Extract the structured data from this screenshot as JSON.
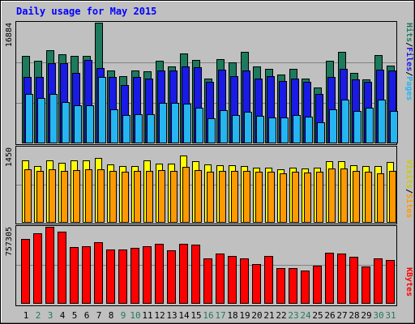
{
  "chart_data": {
    "type": "bar",
    "title": "Daily usage for May 2015",
    "categories": [
      "1",
      "2",
      "3",
      "4",
      "5",
      "6",
      "7",
      "8",
      "9",
      "10",
      "11",
      "12",
      "13",
      "14",
      "15",
      "16",
      "17",
      "18",
      "19",
      "20",
      "21",
      "22",
      "23",
      "24",
      "25",
      "26",
      "27",
      "28",
      "29",
      "30",
      "31"
    ],
    "weekend_days": [
      "2",
      "3",
      "9",
      "10",
      "16",
      "17",
      "23",
      "24",
      "30",
      "31"
    ],
    "panels": [
      {
        "name": "pages-files-hits",
        "ymax_label": "16884",
        "ymax": 16884,
        "legend": [
          "Pages",
          "/",
          "Files",
          "/",
          "Hits"
        ],
        "series": [
          {
            "name": "Hits",
            "color": "#1d7a5c",
            "values": [
              12200,
              11500,
              13000,
              12400,
              12200,
              12200,
              16884,
              10200,
              9400,
              10200,
              10000,
              11500,
              10700,
              12500,
              11600,
              9000,
              11800,
              11300,
              12800,
              10700,
              10400,
              9600,
              10400,
              9000,
              7800,
              11500,
              12800,
              9800,
              8900,
              12300,
              10800
            ]
          },
          {
            "name": "Files",
            "color": "#1a1ae6",
            "values": [
              9200,
              9200,
              11200,
              11200,
              9800,
              11600,
              10500,
              9200,
              8100,
              9200,
              9000,
              10200,
              10100,
              10700,
              10600,
              8500,
              10300,
              9300,
              10100,
              9000,
              9300,
              8700,
              9000,
              8600,
              6800,
              9200,
              10400,
              8900,
              8600,
              10300,
              10200
            ]
          },
          {
            "name": "Pages",
            "color": "#25b5f0",
            "values": [
              6800,
              6300,
              6800,
              5700,
              5300,
              5300,
              9200,
              4700,
              3900,
              4000,
              4000,
              5600,
              5600,
              5500,
              4900,
              3400,
              4600,
              3900,
              4300,
              3800,
              3500,
              3500,
              3900,
              3700,
              2900,
              4700,
              6000,
              4500,
              4900,
              6000,
              4400
            ]
          }
        ]
      },
      {
        "name": "visits-sites",
        "ymax_label": "1450",
        "ymax": 1450,
        "legend": [
          "Sites",
          "/",
          "Visits"
        ],
        "series": [
          {
            "name": "Visits",
            "color": "#ffff00",
            "values": [
              1200,
              1080,
              1200,
              1150,
              1200,
              1190,
              1250,
              1120,
              1090,
              1090,
              1200,
              1140,
              1130,
              1300,
              1180,
              1120,
              1110,
              1100,
              1080,
              1050,
              1060,
              1030,
              1050,
              1040,
              1060,
              1180,
              1180,
              1100,
              1080,
              1090,
              1160
            ]
          },
          {
            "name": "Sites",
            "color": "#ff9900",
            "values": [
              1020,
              1000,
              1020,
              1000,
              1010,
              1020,
              1020,
              990,
              970,
              990,
              990,
              1010,
              1000,
              1070,
              1010,
              970,
              1000,
              990,
              1000,
              970,
              970,
              950,
              970,
              960,
              970,
              1040,
              1040,
              990,
              970,
              950,
              990
            ]
          }
        ]
      },
      {
        "name": "kbytes",
        "ymax_label": "757305",
        "ymax": 757305,
        "legend": [
          "KBytes"
        ],
        "series": [
          {
            "name": "KBytes",
            "color": "#ff0000",
            "values": [
              640000,
              690000,
              757305,
              710000,
              555000,
              565000,
              605000,
              530000,
              530000,
              550000,
              560000,
              590000,
              520000,
              590000,
              580000,
              440000,
              490000,
              470000,
              440000,
              390000,
              470000,
              350000,
              350000,
              320000,
              370000,
              500000,
              490000,
              460000,
              360000,
              440000,
              430000
            ]
          }
        ]
      }
    ]
  }
}
